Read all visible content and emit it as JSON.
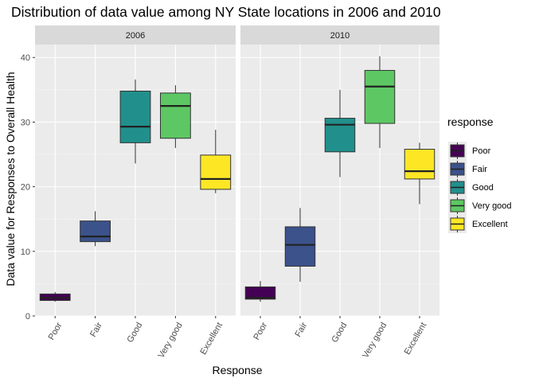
{
  "chart_data": {
    "type": "boxplot",
    "title": "Distribution of data value among NY State locations in 2006 and 2010",
    "xlabel": "Response",
    "ylabel": "Data value for Responses to Overall Health",
    "ylim": [
      0,
      42
    ],
    "yticks": [
      0,
      10,
      20,
      30,
      40
    ],
    "grid": true,
    "legend": {
      "title": "response",
      "placement": "right",
      "items": [
        {
          "label": "Poor",
          "color": "#440154"
        },
        {
          "label": "Fair",
          "color": "#3B528B"
        },
        {
          "label": "Good",
          "color": "#21908C"
        },
        {
          "label": "Very good",
          "color": "#5DC863"
        },
        {
          "label": "Excellent",
          "color": "#FDE725"
        }
      ]
    },
    "categories": [
      "Poor",
      "Fair",
      "Good",
      "Very good",
      "Excellent"
    ],
    "panels": [
      {
        "name": "2006",
        "boxes": [
          {
            "category": "Poor",
            "min": 2.2,
            "q1": 2.4,
            "median": 2.8,
            "q3": 3.4,
            "max": 3.7
          },
          {
            "category": "Fair",
            "min": 10.8,
            "q1": 11.5,
            "median": 12.3,
            "q3": 14.7,
            "max": 16.2
          },
          {
            "category": "Good",
            "min": 23.6,
            "q1": 26.8,
            "median": 29.3,
            "q3": 34.8,
            "max": 36.6
          },
          {
            "category": "Very good",
            "min": 26.0,
            "q1": 27.5,
            "median": 32.5,
            "q3": 34.5,
            "max": 35.7
          },
          {
            "category": "Excellent",
            "min": 19.0,
            "q1": 19.6,
            "median": 21.2,
            "q3": 24.9,
            "max": 28.8
          }
        ]
      },
      {
        "name": "2010",
        "boxes": [
          {
            "category": "Poor",
            "min": 2.2,
            "q1": 2.6,
            "median": 2.8,
            "q3": 4.5,
            "max": 5.4
          },
          {
            "category": "Fair",
            "min": 5.3,
            "q1": 7.7,
            "median": 11.0,
            "q3": 13.8,
            "max": 16.7
          },
          {
            "category": "Good",
            "min": 21.5,
            "q1": 25.4,
            "median": 29.6,
            "q3": 30.6,
            "max": 35.0
          },
          {
            "category": "Very good",
            "min": 26.0,
            "q1": 29.8,
            "median": 35.5,
            "q3": 38.0,
            "max": 40.2
          },
          {
            "category": "Excellent",
            "min": 17.3,
            "q1": 21.2,
            "median": 22.4,
            "q3": 25.8,
            "max": 26.8
          }
        ]
      }
    ]
  }
}
